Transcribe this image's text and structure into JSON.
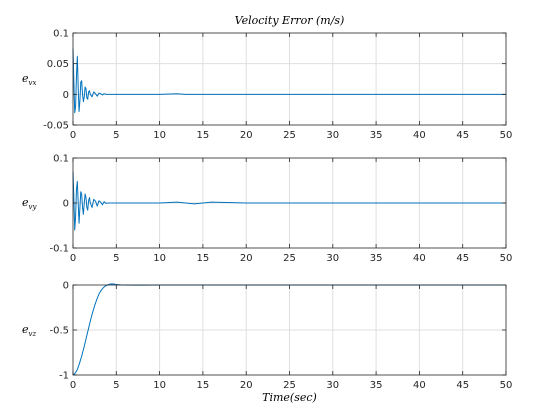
{
  "chart_data": [
    {
      "type": "line",
      "title": "Velocity Error (m/s)",
      "ylabel": "e_vx",
      "ylabel_main": "e",
      "ylabel_sub": "vx",
      "xlabel": "",
      "xlim": [
        0,
        50
      ],
      "ylim": [
        -0.05,
        0.1
      ],
      "xticks": [
        0,
        5,
        10,
        15,
        20,
        25,
        30,
        35,
        40,
        45,
        50
      ],
      "xtick_labels": [
        "0",
        "5",
        "10",
        "15",
        "20",
        "25",
        "30",
        "35",
        "40",
        "45",
        "50"
      ],
      "yticks": [
        -0.05,
        0,
        0.05,
        0.1
      ],
      "ytick_labels": [
        "-0.05",
        "0",
        "0.05",
        "0.1"
      ],
      "grid": true,
      "color": "#0072BD",
      "series": [
        {
          "x": [
            0,
            0.1,
            0.2,
            0.3,
            0.4,
            0.5,
            0.6,
            0.7,
            0.8,
            0.9,
            1.0,
            1.1,
            1.2,
            1.3,
            1.4,
            1.5,
            1.6,
            1.7,
            1.8,
            1.9,
            2.0,
            2.2,
            2.4,
            2.6,
            2.8,
            3.0,
            3.2,
            3.4,
            3.6,
            3.8,
            4.0,
            4.5,
            5,
            10,
            12,
            13,
            20,
            30,
            40,
            50
          ],
          "y": [
            0.075,
            0.02,
            -0.03,
            -0.02,
            0.03,
            0.062,
            0.01,
            -0.028,
            -0.01,
            0.02,
            0.022,
            0.0,
            -0.012,
            -0.004,
            0.012,
            0.009,
            -0.006,
            -0.008,
            0.004,
            0.006,
            0.0,
            -0.004,
            0.004,
            0.001,
            -0.003,
            0.002,
            0.001,
            -0.001,
            0.001,
            0.0,
            0.0,
            0.0,
            0.0,
            0.0,
            0.001,
            0.0,
            0.0,
            0.0,
            0.0,
            0.0
          ]
        }
      ]
    },
    {
      "type": "line",
      "title": "",
      "ylabel": "e_vy",
      "ylabel_main": "e",
      "ylabel_sub": "vy",
      "xlabel": "",
      "xlim": [
        0,
        50
      ],
      "ylim": [
        -0.1,
        0.1
      ],
      "xticks": [
        0,
        5,
        10,
        15,
        20,
        25,
        30,
        35,
        40,
        45,
        50
      ],
      "xtick_labels": [
        "0",
        "5",
        "10",
        "15",
        "20",
        "25",
        "30",
        "35",
        "40",
        "45",
        "50"
      ],
      "yticks": [
        -0.1,
        0,
        0.1
      ],
      "ytick_labels": [
        "-0.1",
        "0",
        "0.1"
      ],
      "grid": true,
      "color": "#0072BD",
      "series": [
        {
          "x": [
            0,
            0.1,
            0.2,
            0.3,
            0.4,
            0.5,
            0.6,
            0.7,
            0.8,
            0.9,
            1.0,
            1.1,
            1.2,
            1.3,
            1.4,
            1.5,
            1.6,
            1.7,
            1.8,
            1.9,
            2.0,
            2.2,
            2.4,
            2.6,
            2.8,
            3.0,
            3.2,
            3.4,
            3.6,
            3.8,
            4.0,
            5,
            10,
            12,
            14,
            16,
            20,
            25,
            30,
            35,
            40,
            45,
            50
          ],
          "y": [
            0.07,
            0.01,
            -0.06,
            -0.03,
            0.03,
            0.048,
            0.0,
            -0.045,
            -0.01,
            0.025,
            0.02,
            -0.01,
            -0.025,
            0.0,
            0.02,
            0.012,
            -0.01,
            -0.016,
            0.005,
            0.012,
            0.0,
            -0.01,
            0.008,
            0.004,
            -0.007,
            0.005,
            0.002,
            -0.004,
            0.003,
            -0.001,
            0.0,
            0.0,
            0.0,
            0.002,
            -0.002,
            0.002,
            0.0,
            0.0,
            0.0,
            0.0,
            0.0,
            0.0,
            0.0
          ]
        }
      ]
    },
    {
      "type": "line",
      "title": "",
      "ylabel": "e_vz",
      "ylabel_main": "e",
      "ylabel_sub": "vz",
      "xlabel": "Time(sec)",
      "xlim": [
        0,
        50
      ],
      "ylim": [
        -1,
        0
      ],
      "xticks": [
        0,
        5,
        10,
        15,
        20,
        25,
        30,
        35,
        40,
        45,
        50
      ],
      "xtick_labels": [
        "0",
        "5",
        "10",
        "15",
        "20",
        "25",
        "30",
        "35",
        "40",
        "45",
        "50"
      ],
      "yticks": [
        -1,
        -0.5,
        0
      ],
      "ytick_labels": [
        "-1",
        "-0.5",
        "0"
      ],
      "grid": true,
      "color": "#0072BD",
      "series": [
        {
          "x": [
            0,
            0.25,
            0.5,
            0.75,
            1.0,
            1.25,
            1.5,
            1.75,
            2.0,
            2.25,
            2.5,
            2.75,
            3.0,
            3.25,
            3.5,
            3.75,
            4.0,
            4.25,
            4.5,
            4.75,
            5.0,
            5.5,
            6.0,
            7.0,
            8.0,
            10,
            20,
            30,
            40,
            50
          ],
          "y": [
            -1.0,
            -0.98,
            -0.94,
            -0.87,
            -0.79,
            -0.7,
            -0.6,
            -0.5,
            -0.4,
            -0.31,
            -0.23,
            -0.16,
            -0.1,
            -0.06,
            -0.03,
            -0.01,
            0.0,
            0.01,
            0.012,
            0.01,
            0.006,
            0.002,
            0.0,
            -0.002,
            -0.001,
            0.0,
            0.0,
            0.0,
            0.0,
            0.0
          ]
        }
      ]
    }
  ]
}
